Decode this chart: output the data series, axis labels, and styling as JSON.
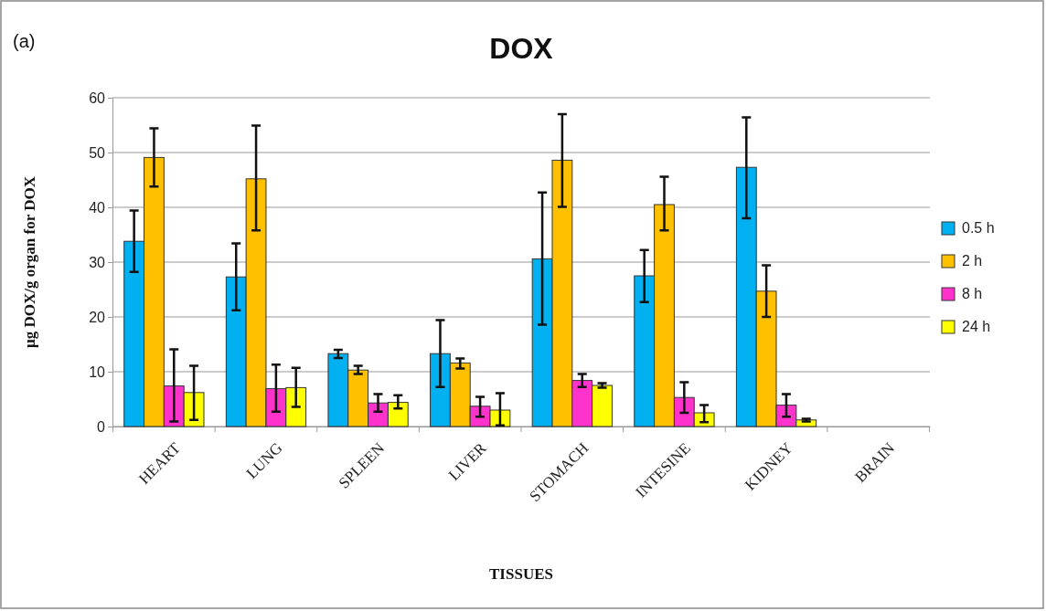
{
  "chart_data": {
    "type": "bar",
    "title": "DOX",
    "xlabel": "TISSUES",
    "ylabel": "µg DOX/g organ for DOX",
    "annotations": [
      "(a)"
    ],
    "categories": [
      "HEART",
      "LUNG",
      "SPLEEN",
      "LIVER",
      "STOMACH",
      "INTESINE",
      "KIDNEY",
      "BRAIN"
    ],
    "series": [
      {
        "name": "0.5 h",
        "color": "#00b0f0",
        "values": [
          33.8,
          27.3,
          13.3,
          13.3,
          30.6,
          27.5,
          47.3,
          null
        ],
        "errors": [
          [
            28.2,
            39.4
          ],
          [
            21.2,
            33.4
          ],
          [
            12.5,
            14.0
          ],
          [
            7.2,
            19.4
          ],
          [
            18.6,
            42.7
          ],
          [
            22.7,
            32.2
          ],
          [
            38.0,
            56.4
          ],
          null
        ]
      },
      {
        "name": "2 h",
        "color": "#ffc000",
        "values": [
          49.1,
          45.2,
          10.3,
          11.6,
          48.6,
          40.5,
          24.7,
          null
        ],
        "errors": [
          [
            43.8,
            54.4
          ],
          [
            35.8,
            54.9
          ],
          [
            9.6,
            11.1
          ],
          [
            10.6,
            12.4
          ],
          [
            40.1,
            57.0
          ],
          [
            35.8,
            45.6
          ],
          [
            20.0,
            29.4
          ],
          null
        ]
      },
      {
        "name": "8 h",
        "color": "#ff33cc",
        "values": [
          7.4,
          6.9,
          4.3,
          3.7,
          8.4,
          5.3,
          3.9,
          null
        ],
        "errors": [
          [
            0.9,
            14.1
          ],
          [
            2.7,
            11.3
          ],
          [
            2.7,
            5.9
          ],
          [
            1.8,
            5.4
          ],
          [
            7.2,
            9.6
          ],
          [
            2.5,
            8.1
          ],
          [
            1.8,
            5.9
          ],
          null
        ]
      },
      {
        "name": "24 h",
        "color": "#ffff00",
        "values": [
          6.2,
          7.1,
          4.4,
          3.0,
          7.5,
          2.5,
          1.2,
          null
        ],
        "errors": [
          [
            1.2,
            11.1
          ],
          [
            3.6,
            10.7
          ],
          [
            3.3,
            5.7
          ],
          [
            0.2,
            6.1
          ],
          [
            7.1,
            7.9
          ],
          [
            0.8,
            3.9
          ],
          [
            0.9,
            1.4
          ],
          null
        ]
      }
    ],
    "ylim": [
      0,
      60
    ],
    "yticks": [
      0,
      10,
      20,
      30,
      40,
      50,
      60
    ],
    "grid": "y",
    "legend": "right"
  }
}
